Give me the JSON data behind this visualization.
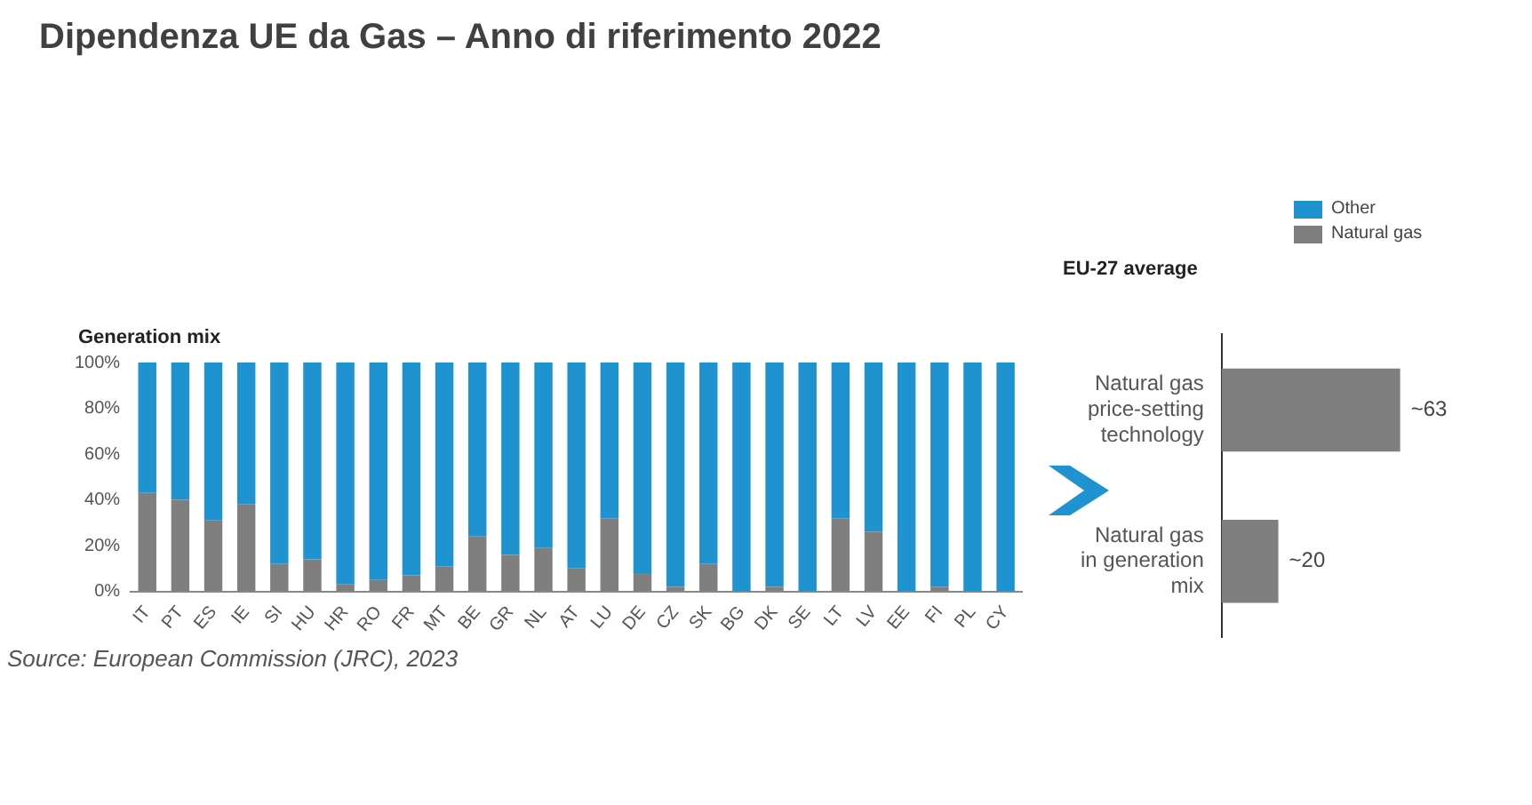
{
  "chart_data": [
    {
      "type": "bar",
      "title": "Dipendenza UE da Gas – Anno di riferimento 2022",
      "ylabel": "Generation mix",
      "stacked": true,
      "legend": "top right",
      "grid": false,
      "categories": [
        "IT",
        "PT",
        "ES",
        "IE",
        "SI",
        "HU",
        "HR",
        "RO",
        "FR",
        "MT",
        "BE",
        "GR",
        "NL",
        "AT",
        "LU",
        "DE",
        "CZ",
        "SK",
        "BG",
        "DK",
        "SE",
        "LT",
        "LV",
        "EE",
        "FI",
        "PL",
        "CY"
      ],
      "series": [
        {
          "name": "Natural gas",
          "color": "#7f7f7f",
          "values": [
            43,
            40,
            31,
            38,
            12,
            14,
            3,
            5,
            7,
            11,
            24,
            16,
            19,
            10,
            32,
            8,
            2,
            12,
            0,
            2,
            0,
            32,
            26,
            0,
            2,
            0,
            0
          ]
        },
        {
          "name": "Other",
          "color": "#1f93d0",
          "values": [
            57,
            60,
            69,
            62,
            88,
            86,
            97,
            95,
            93,
            89,
            76,
            84,
            81,
            90,
            68,
            92,
            98,
            88,
            100,
            98,
            100,
            68,
            74,
            100,
            98,
            100,
            100
          ]
        }
      ],
      "ylim": [
        0,
        100
      ],
      "yticks": [
        {
          "value": 0,
          "label": "0%"
        },
        {
          "value": 20,
          "label": "20%"
        },
        {
          "value": 40,
          "label": "40%"
        },
        {
          "value": 60,
          "label": "60%"
        },
        {
          "value": 80,
          "label": "80%"
        },
        {
          "value": 100,
          "label": "100%"
        }
      ],
      "annotations": [
        "Source: European Commission (JRC), 2023"
      ]
    },
    {
      "type": "bar",
      "orientation": "horizontal",
      "title": "EU-27 average",
      "grid": false,
      "categories": [
        "Natural gas price-setting technology",
        "Natural gas in generation mix"
      ],
      "values": [
        63,
        20
      ],
      "value_labels": [
        "~63",
        "~20"
      ],
      "color": "#7f7f7f"
    }
  ]
}
